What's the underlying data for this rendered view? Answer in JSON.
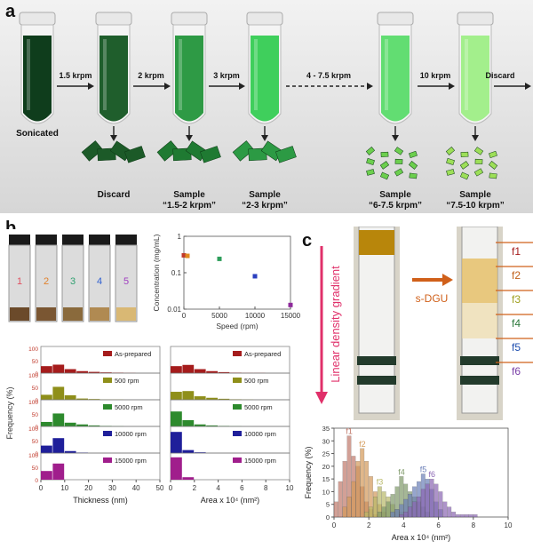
{
  "panel_labels": {
    "a": "a",
    "b": "b",
    "c": "c"
  },
  "panel_a": {
    "vials": [
      {
        "label": "Sonicated",
        "color": "#0f3d1c"
      },
      {
        "label": "",
        "color": "#1f5e2c"
      },
      {
        "label": "",
        "color": "#2e9a45"
      },
      {
        "label": "",
        "color": "#3fcf5c"
      },
      {
        "label": "",
        "color": "#62dd72"
      },
      {
        "label": "",
        "color": "#a3ef8c"
      }
    ],
    "steps": [
      "1.5 krpm",
      "2 krpm",
      "3 krpm",
      "4 - 7.5 krpm",
      "10 krpm",
      "Discard"
    ],
    "flakes": [
      {
        "line1": "Discard",
        "line2": "",
        "color": "#1c5a28"
      },
      {
        "line1": "Sample",
        "line2": "“1.5-2 krpm”",
        "color": "#1f7a32"
      },
      {
        "line1": "Sample",
        "line2": "“2-3 krpm”",
        "color": "#2c9a44"
      },
      {
        "line1": "Sample",
        "line2": "“6-7.5 krpm”",
        "color": "#6ccf4e"
      },
      {
        "line1": "Sample",
        "line2": "“7.5-10 krpm”",
        "color": "#9ddf58"
      }
    ]
  },
  "panel_b_photo": {
    "vial_numbers": [
      "1",
      "2",
      "3",
      "4",
      "5"
    ],
    "number_colors": [
      "#e05060",
      "#e0802a",
      "#30a070",
      "#3060d0",
      "#a040c0"
    ]
  },
  "chart_data": [
    {
      "type": "scatter",
      "xlabel": "Speed (rpm)",
      "ylabel": "Concentration (mg/mL)",
      "log_y": true,
      "xlim": [
        0,
        15000
      ],
      "ylim": [
        0.01,
        1
      ],
      "xticks": [
        "0",
        "5000",
        "10000",
        "15000"
      ],
      "yticks": [
        "0.01",
        "0.1",
        "1"
      ],
      "points": [
        {
          "x": 0,
          "y": 0.3,
          "color": "#c0392b"
        },
        {
          "x": 500,
          "y": 0.29,
          "color": "#e08a1e"
        },
        {
          "x": 5000,
          "y": 0.24,
          "color": "#2e9e5b"
        },
        {
          "x": 10000,
          "y": 0.08,
          "color": "#2a3fbf"
        },
        {
          "x": 15000,
          "y": 0.013,
          "color": "#8e2a9b"
        }
      ]
    },
    {
      "type": "bar",
      "xlabel": "Thickness (nm)",
      "ylabel": "Frequency (%)",
      "xlim": [
        0,
        50
      ],
      "xticks": [
        "0",
        "10",
        "20",
        "30",
        "40",
        "50"
      ],
      "yticks": [
        "0",
        "50",
        "100"
      ],
      "bin_starts": [
        0,
        5,
        10,
        15,
        20,
        25,
        30,
        35
      ],
      "bin_width": 5,
      "series": [
        {
          "name": "As-prepared",
          "color": "#a51c1c",
          "values": [
            28,
            34,
            16,
            8,
            5,
            3,
            2,
            1
          ]
        },
        {
          "name": "500 rpm",
          "color": "#8f8f1a",
          "values": [
            20,
            52,
            18,
            5,
            3,
            1,
            1,
            0
          ]
        },
        {
          "name": "5000 rpm",
          "color": "#2d8a2d",
          "values": [
            18,
            52,
            15,
            8,
            4,
            2,
            1,
            0
          ]
        },
        {
          "name": "10000 rpm",
          "color": "#1f1f9a",
          "values": [
            30,
            60,
            8,
            2,
            0,
            0,
            0,
            0
          ]
        },
        {
          "name": "15000 rpm",
          "color": "#a01e8c",
          "values": [
            35,
            65,
            0,
            0,
            0,
            0,
            0,
            0
          ]
        }
      ]
    },
    {
      "type": "bar",
      "xlabel": "Area x 10⁴ (nm²)",
      "ylabel": "",
      "xlim": [
        0,
        10
      ],
      "xticks": [
        "0",
        "2",
        "4",
        "6",
        "8",
        "10"
      ],
      "bin_starts": [
        0,
        1,
        2,
        3,
        4,
        5,
        6,
        7
      ],
      "bin_width": 1,
      "series": [
        {
          "name": "As-prepared",
          "color": "#a51c1c",
          "values": [
            28,
            33,
            16,
            8,
            4,
            2,
            1,
            1
          ]
        },
        {
          "name": "500 rpm",
          "color": "#8f8f1a",
          "values": [
            32,
            35,
            14,
            8,
            4,
            2,
            1,
            0
          ]
        },
        {
          "name": "5000 rpm",
          "color": "#2d8a2d",
          "values": [
            60,
            25,
            8,
            4,
            2,
            1,
            0,
            0
          ]
        },
        {
          "name": "10000 rpm",
          "color": "#1f1f9a",
          "values": [
            85,
            12,
            3,
            0,
            0,
            0,
            0,
            0
          ]
        },
        {
          "name": "15000 rpm",
          "color": "#a01e8c",
          "values": [
            90,
            10,
            0,
            0,
            0,
            0,
            0,
            0
          ]
        }
      ]
    },
    {
      "type": "bar",
      "xlabel": "Area x 10⁴ (nm²)",
      "ylabel": "Frequency (%)",
      "xlim": [
        0,
        10
      ],
      "ylim": [
        0,
        35
      ],
      "xticks": [
        "0",
        "2",
        "4",
        "6",
        "8",
        "10"
      ],
      "yticks": [
        "0",
        "5",
        "10",
        "15",
        "20",
        "25",
        "30",
        "35"
      ],
      "bin_width": 0.25,
      "series": [
        {
          "name": "f1",
          "color": "#c0786a",
          "start": 0,
          "values": [
            6,
            14,
            22,
            32,
            24,
            20,
            12,
            6,
            3,
            1
          ]
        },
        {
          "name": "f2",
          "color": "#d49a5a",
          "start": 0.5,
          "values": [
            4,
            8,
            14,
            22,
            27,
            22,
            16,
            10,
            5,
            2
          ]
        },
        {
          "name": "f3",
          "color": "#b9b968",
          "start": 1.75,
          "values": [
            2,
            4,
            8,
            12,
            10,
            8,
            5,
            3,
            2,
            1
          ]
        },
        {
          "name": "f4",
          "color": "#7f9a6a",
          "start": 2.5,
          "values": [
            2,
            4,
            6,
            9,
            12,
            16,
            13,
            10,
            8,
            6,
            4,
            2
          ]
        },
        {
          "name": "f5",
          "color": "#6b7fb8",
          "start": 3.25,
          "values": [
            2,
            3,
            5,
            7,
            9,
            12,
            14,
            17,
            15,
            11,
            6,
            3
          ]
        },
        {
          "name": "f6",
          "color": "#8b66b3",
          "start": 3.75,
          "values": [
            1,
            2,
            4,
            6,
            8,
            11,
            13,
            15,
            13,
            10,
            6,
            4,
            2,
            1,
            1,
            1,
            1,
            1
          ]
        }
      ]
    }
  ],
  "panel_c": {
    "gradient_label": "Linear density gradient",
    "arrow_label": "s-DGU",
    "fraction_labels": [
      {
        "text": "f1",
        "color": "#a51c1c"
      },
      {
        "text": "f2",
        "color": "#c0601a"
      },
      {
        "text": "f3",
        "color": "#a0a020"
      },
      {
        "text": "f4",
        "color": "#2d7a3d"
      },
      {
        "text": "f5",
        "color": "#1f4fb0"
      },
      {
        "text": "f6",
        "color": "#7a3fa8"
      }
    ],
    "gradient_color": "#e0306a",
    "arrow_color": "#d0601a"
  }
}
